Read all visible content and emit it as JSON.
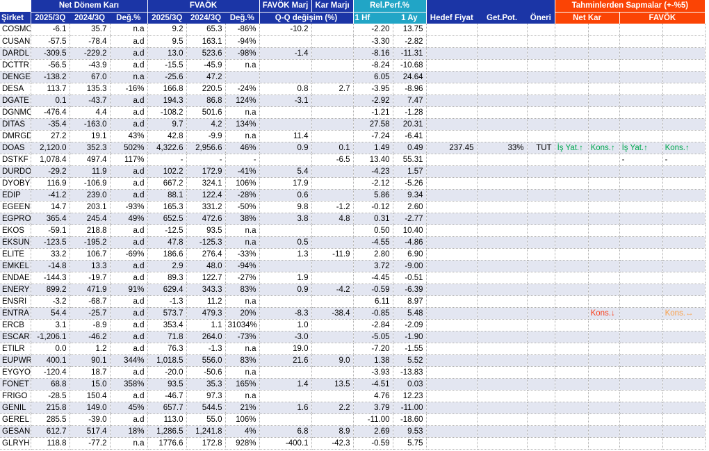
{
  "colors": {
    "header_blue": "#1B35A6",
    "header_cyan": "#21A5C6",
    "header_orange": "#FB4405",
    "row_shade": "#E3E6F1",
    "green": "#00A84F",
    "red": "#F8401C",
    "amber": "#F9A14A"
  },
  "header": {
    "row1": [
      {
        "label": "",
        "span": 1,
        "style": "blank",
        "sep": true
      },
      {
        "label": "Net Dönem Karı",
        "span": 3,
        "style": "blue",
        "sep": true,
        "hb": true
      },
      {
        "label": "FVAÖK",
        "span": 3,
        "style": "blue",
        "sep": true,
        "hb": true
      },
      {
        "label": "FAVÖK Marj",
        "span": 1,
        "style": "blue",
        "sep": true,
        "hb": true
      },
      {
        "label": "Kar Marjı",
        "span": 1,
        "style": "blue",
        "sep": true,
        "hb": true
      },
      {
        "label": "Rel.Perf.%",
        "span": 2,
        "style": "cyan",
        "sep": true,
        "hb": true
      },
      {
        "label": "",
        "span": 3,
        "style": "blue",
        "sep": true,
        "hb": false
      },
      {
        "label": "Tahminlerden Sapmalar (+-%5)",
        "span": 4,
        "style": "orange",
        "sep": false,
        "hb": true
      }
    ],
    "row2": [
      {
        "label": "Şirket",
        "span": 1,
        "style": "blue",
        "align": "al",
        "sep": true
      },
      {
        "label": "2025/3Q",
        "span": 1,
        "style": "blue"
      },
      {
        "label": "2024/3Q",
        "span": 1,
        "style": "blue"
      },
      {
        "label": "Değ.%",
        "span": 1,
        "style": "blue",
        "sep": true
      },
      {
        "label": "2025/3Q",
        "span": 1,
        "style": "blue"
      },
      {
        "label": "2024/3Q",
        "span": 1,
        "style": "blue"
      },
      {
        "label": "Değ.%",
        "span": 1,
        "style": "blue",
        "sep": true
      },
      {
        "label": "Q-Q değişim (%)",
        "span": 2,
        "style": "blue",
        "sep": true
      },
      {
        "label": "1 Hf",
        "span": 1,
        "style": "cyan",
        "align": "al"
      },
      {
        "label": "1 Ay",
        "span": 1,
        "style": "cyan",
        "sep": true
      },
      {
        "label": "Hedef Fiyat",
        "span": 1,
        "style": "blue"
      },
      {
        "label": "Get.Pot.",
        "span": 1,
        "style": "blue"
      },
      {
        "label": "Öneri",
        "span": 1,
        "style": "blue",
        "sep": true
      },
      {
        "label": "Net Kar",
        "span": 2,
        "style": "orange",
        "sep": true
      },
      {
        "label": "FAVÖK",
        "span": 2,
        "style": "orange"
      }
    ]
  },
  "rows": [
    [
      "COSMO",
      "-6.1",
      "35.7",
      "n.a",
      "9.2",
      "65.3",
      "-86%",
      "-10.2",
      "",
      "-2.20",
      "13.75",
      "",
      "",
      "",
      "",
      "",
      "",
      ""
    ],
    [
      "CUSAN",
      "-57.5",
      "-78.4",
      "a.d",
      "9.5",
      "163.1",
      "-94%",
      "",
      "",
      "-3.30",
      "-2.82",
      "",
      "",
      "",
      "",
      "",
      "",
      ""
    ],
    [
      "DARDL",
      "-309.5",
      "-229.2",
      "a.d",
      "13.0",
      "523.6",
      "-98%",
      "-1.4",
      "",
      "-8.16",
      "-11.31",
      "",
      "",
      "",
      "",
      "",
      "",
      ""
    ],
    [
      "DCTTR",
      "-56.5",
      "-43.9",
      "a.d",
      "-15.5",
      "-45.9",
      "n.a",
      "",
      "",
      "-8.24",
      "-10.68",
      "",
      "",
      "",
      "",
      "",
      "",
      ""
    ],
    [
      "DENGE",
      "-138.2",
      "67.0",
      "n.a",
      "-25.6",
      "47.2",
      "",
      "",
      "",
      "6.05",
      "24.64",
      "",
      "",
      "",
      "",
      "",
      "",
      ""
    ],
    [
      "DESA",
      "113.7",
      "135.3",
      "-16%",
      "166.8",
      "220.5",
      "-24%",
      "0.8",
      "2.7",
      "-3.95",
      "-8.96",
      "",
      "",
      "",
      "",
      "",
      "",
      ""
    ],
    [
      "DGATE",
      "0.1",
      "-43.7",
      "a.d",
      "194.3",
      "86.8",
      "124%",
      "-3.1",
      "",
      "-2.92",
      "7.47",
      "",
      "",
      "",
      "",
      "",
      "",
      ""
    ],
    [
      "DGNMO",
      "-476.4",
      "4.4",
      "a.d",
      "-108.2",
      "501.6",
      "n.a",
      "",
      "",
      "-1.21",
      "-1.28",
      "",
      "",
      "",
      "",
      "",
      "",
      ""
    ],
    [
      "DITAS",
      "-35.4",
      "-163.0",
      "a.d",
      "9.7",
      "4.2",
      "134%",
      "",
      "",
      "27.58",
      "20.31",
      "",
      "",
      "",
      "",
      "",
      "",
      ""
    ],
    [
      "DMRGD",
      "27.2",
      "19.1",
      "43%",
      "42.8",
      "-9.9",
      "n.a",
      "11.4",
      "",
      "-7.24",
      "-6.41",
      "",
      "",
      "",
      "",
      "",
      "",
      ""
    ],
    [
      "DOAS",
      "2,120.0",
      "352.3",
      "502%",
      "4,322.6",
      "2,956.6",
      "46%",
      "0.9",
      "0.1",
      "1.49",
      "0.49",
      "237.45",
      "33%",
      "TUT",
      {
        "t": "İş Yat.↑",
        "c": "green"
      },
      {
        "t": "Kons.↑",
        "c": "green"
      },
      {
        "t": "İş Yat.↑",
        "c": "green"
      },
      {
        "t": "Kons.↑",
        "c": "green"
      }
    ],
    [
      "DSTKF",
      "1,078.4",
      "497.4",
      "117%",
      "-",
      "-",
      "-",
      "",
      "-6.5",
      "13.40",
      "55.31",
      "",
      "",
      "",
      "",
      "",
      "-",
      "-"
    ],
    [
      "DURDO",
      "-29.2",
      "11.9",
      "a.d",
      "102.2",
      "172.9",
      "-41%",
      "5.4",
      "",
      "-4.23",
      "1.57",
      "",
      "",
      "",
      "",
      "",
      "",
      ""
    ],
    [
      "DYOBY",
      "116.9",
      "-106.9",
      "a.d",
      "667.2",
      "324.1",
      "106%",
      "17.9",
      "",
      "-2.12",
      "-5.26",
      "",
      "",
      "",
      "",
      "",
      "",
      ""
    ],
    [
      "EDIP",
      "-41.2",
      "239.0",
      "a.d",
      "88.1",
      "122.4",
      "-28%",
      "0.6",
      "",
      "5.86",
      "9.34",
      "",
      "",
      "",
      "",
      "",
      "",
      ""
    ],
    [
      "EGEEN",
      "14.7",
      "203.1",
      "-93%",
      "165.3",
      "331.2",
      "-50%",
      "9.8",
      "-1.2",
      "-0.12",
      "2.60",
      "",
      "",
      "",
      "",
      "",
      "",
      ""
    ],
    [
      "EGPRO",
      "365.4",
      "245.4",
      "49%",
      "652.5",
      "472.6",
      "38%",
      "3.8",
      "4.8",
      "0.31",
      "-2.77",
      "",
      "",
      "",
      "",
      "",
      "",
      ""
    ],
    [
      "EKOS",
      "-59.1",
      "218.8",
      "a.d",
      "-12.5",
      "93.5",
      "n.a",
      "",
      "",
      "0.50",
      "10.40",
      "",
      "",
      "",
      "",
      "",
      "",
      ""
    ],
    [
      "EKSUN",
      "-123.5",
      "-195.2",
      "a.d",
      "47.8",
      "-125.3",
      "n.a",
      "0.5",
      "",
      "-4.55",
      "-4.86",
      "",
      "",
      "",
      "",
      "",
      "",
      ""
    ],
    [
      "ELITE",
      "33.2",
      "106.7",
      "-69%",
      "186.6",
      "276.4",
      "-33%",
      "1.3",
      "-11.9",
      "2.80",
      "6.90",
      "",
      "",
      "",
      "",
      "",
      "",
      ""
    ],
    [
      "EMKEL",
      "-14.8",
      "13.3",
      "a.d",
      "2.9",
      "48.0",
      "-94%",
      "",
      "",
      "3.72",
      "-9.00",
      "",
      "",
      "",
      "",
      "",
      "",
      ""
    ],
    [
      "ENDAE",
      "-144.3",
      "-19.7",
      "a.d",
      "89.3",
      "122.7",
      "-27%",
      "1.9",
      "",
      "-4.45",
      "-0.51",
      "",
      "",
      "",
      "",
      "",
      "",
      ""
    ],
    [
      "ENERY",
      "899.2",
      "471.9",
      "91%",
      "629.4",
      "343.3",
      "83%",
      "0.9",
      "-4.2",
      "-0.59",
      "-6.39",
      "",
      "",
      "",
      "",
      "",
      "",
      ""
    ],
    [
      "ENSRI",
      "-3.2",
      "-68.7",
      "a.d",
      "-1.3",
      "11.2",
      "n.a",
      "",
      "",
      "6.11",
      "8.97",
      "",
      "",
      "",
      "",
      "",
      "",
      ""
    ],
    [
      "ENTRA",
      "54.4",
      "-25.7",
      "a.d",
      "573.7",
      "479.3",
      "20%",
      "-8.3",
      "-38.4",
      "-0.85",
      "5.48",
      "",
      "",
      "",
      "",
      {
        "t": "Kons.↓",
        "c": "red"
      },
      "",
      {
        "t": "Kons.↔",
        "c": "amber"
      }
    ],
    [
      "ERCB",
      "3.1",
      "-8.9",
      "a.d",
      "353.4",
      "1.1",
      "31034%",
      "1.0",
      "",
      "-2.84",
      "-2.09",
      "",
      "",
      "",
      "",
      "",
      "",
      ""
    ],
    [
      "ESCAR",
      "-1,206.1",
      "-46.2",
      "a.d",
      "71.8",
      "264.0",
      "-73%",
      "-3.0",
      "",
      "-5.05",
      "-1.90",
      "",
      "",
      "",
      "",
      "",
      "",
      ""
    ],
    [
      "ETILR",
      "0.0",
      "1.2",
      "a.d",
      "76.3",
      "-1.3",
      "n.a",
      "19.0",
      "",
      "-7.20",
      "-1.55",
      "",
      "",
      "",
      "",
      "",
      "",
      ""
    ],
    [
      "EUPWR",
      "400.1",
      "90.1",
      "344%",
      "1,018.5",
      "556.0",
      "83%",
      "21.6",
      "9.0",
      "1.38",
      "5.52",
      "",
      "",
      "",
      "",
      "",
      "",
      ""
    ],
    [
      "EYGYO",
      "-120.4",
      "18.7",
      "a.d",
      "-20.0",
      "-50.6",
      "n.a",
      "",
      "",
      "-3.93",
      "-13.83",
      "",
      "",
      "",
      "",
      "",
      "",
      ""
    ],
    [
      "FONET",
      "68.8",
      "15.0",
      "358%",
      "93.5",
      "35.3",
      "165%",
      "1.4",
      "13.5",
      "-4.51",
      "0.03",
      "",
      "",
      "",
      "",
      "",
      "",
      ""
    ],
    [
      "FRIGO",
      "-28.5",
      "150.4",
      "a.d",
      "-46.7",
      "97.3",
      "n.a",
      "",
      "",
      "4.76",
      "12.23",
      "",
      "",
      "",
      "",
      "",
      "",
      ""
    ],
    [
      "GENIL",
      "215.8",
      "149.0",
      "45%",
      "657.7",
      "544.5",
      "21%",
      "1.6",
      "2.2",
      "3.79",
      "-11.00",
      "",
      "",
      "",
      "",
      "",
      "",
      ""
    ],
    [
      "GEREL",
      "285.5",
      "-39.0",
      "a.d",
      "113.0",
      "55.0",
      "106%",
      "",
      "",
      "-11.00",
      "-18.60",
      "",
      "",
      "",
      "",
      "",
      "",
      ""
    ],
    [
      "GESAN",
      "612.7",
      "517.4",
      "18%",
      "1,286.5",
      "1,241.8",
      "4%",
      "6.8",
      "8.9",
      "2.69",
      "9.53",
      "",
      "",
      "",
      "",
      "",
      "",
      ""
    ],
    [
      "GLRYH",
      "118.8",
      "-77.2",
      "n.a",
      "1776.6",
      "172.8",
      "928%",
      "-400.1",
      "-42.3",
      "-0.59",
      "5.75",
      "",
      "",
      "",
      "",
      "",
      "",
      ""
    ]
  ]
}
